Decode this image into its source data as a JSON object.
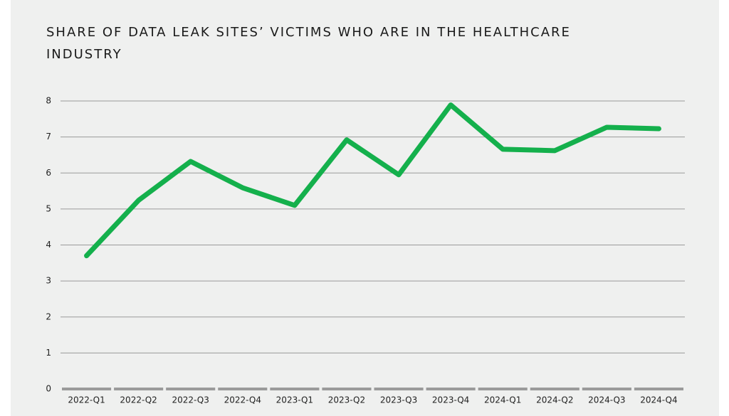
{
  "chart_data": {
    "type": "line",
    "title": "SHARE OF DATA LEAK SITES’ VICTIMS WHO ARE IN THE HEALTHCARE INDUSTRY",
    "categories": [
      "2022-Q1",
      "2022-Q2",
      "2022-Q3",
      "2022-Q4",
      "2023-Q1",
      "2023-Q2",
      "2023-Q3",
      "2023-Q4",
      "2024-Q1",
      "2024-Q2",
      "2024-Q3",
      "2024-Q4"
    ],
    "values": [
      3.7,
      5.24,
      6.32,
      5.59,
      5.1,
      6.92,
      5.95,
      7.89,
      6.66,
      6.62,
      7.27,
      7.23
    ],
    "color": "#14b04c",
    "ylim": [
      0,
      8
    ],
    "yticks": [
      0,
      1,
      2,
      3,
      4,
      5,
      6,
      7,
      8
    ],
    "grid": true
  }
}
